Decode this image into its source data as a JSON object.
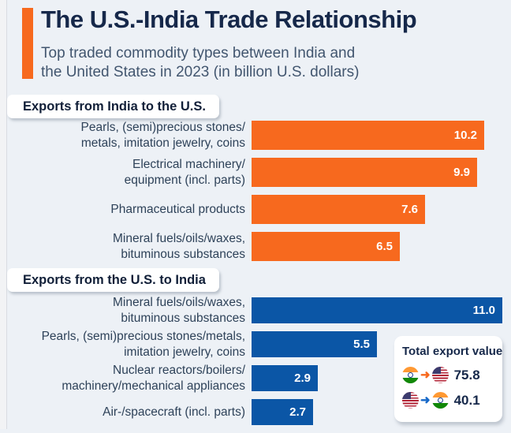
{
  "header": {
    "title": "The U.S.-India Trade Relationship",
    "subtitle": "Top traded commodity types between India and\nthe United States in 2023 (in billion U.S. dollars)",
    "accent_color": "#f7691e"
  },
  "chart_data": [
    {
      "type": "bar",
      "orientation": "horizontal",
      "title": "Exports from India to the U.S.",
      "categories": [
        "Pearls, (semi)precious stones/\nmetals, imitation jewelry, coins",
        "Electrical machinery/\nequipment (incl. parts)",
        "Pharmaceutical products",
        "Mineral fuels/oils/waxes,\nbituminous substances"
      ],
      "values": [
        10.2,
        9.9,
        7.6,
        6.5
      ],
      "value_labels": [
        "10.2",
        "9.9",
        "7.6",
        "6.5"
      ],
      "bar_color": "#f7691e",
      "unit": "billion U.S. dollars",
      "xlim": [
        0,
        11.35
      ],
      "grid": false,
      "value_label_position": "inside-end"
    },
    {
      "type": "bar",
      "orientation": "horizontal",
      "title": "Exports from the U.S. to India",
      "categories": [
        "Mineral fuels/oils/waxes,\nbituminous substances",
        "Pearls, (semi)precious stones/metals,\nimitation jewelry, coins",
        "Nuclear reactors/boilers/\nmachinery/mechanical appliances",
        "Air-/spacecraft (incl. parts)"
      ],
      "values": [
        11.0,
        5.5,
        2.9,
        2.7
      ],
      "value_labels": [
        "11.0",
        "5.5",
        "2.9",
        "2.7"
      ],
      "bar_color": "#0b56a6",
      "unit": "billion U.S. dollars",
      "xlim": [
        0,
        11.35
      ],
      "grid": false,
      "value_label_position": "inside-end"
    }
  ],
  "legend": {
    "title": "Total export value",
    "rows": [
      {
        "from": "India",
        "to": "U.S.",
        "value": "75.8",
        "arrow_color": "#f7691e"
      },
      {
        "from": "U.S.",
        "to": "India",
        "value": "40.1",
        "arrow_color": "#1668c8"
      }
    ]
  },
  "colors": {
    "orange": "#f7691e",
    "blue": "#0b56a6",
    "title_navy": "#16284a",
    "background": "#edf1f6"
  }
}
